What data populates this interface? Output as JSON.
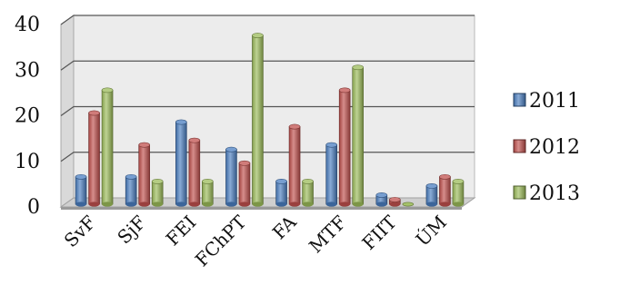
{
  "chart_data": {
    "type": "bar",
    "title": "",
    "xlabel": "",
    "ylabel": "",
    "categories": [
      "SvF",
      "SjF",
      "FEI",
      "FChPT",
      "FA",
      "MTF",
      "FIIT",
      "ÚM"
    ],
    "series": [
      {
        "name": "2011",
        "color": "#4a7ec0",
        "values": [
          6,
          6,
          18,
          12,
          5,
          13,
          2,
          4
        ]
      },
      {
        "name": "2012",
        "color": "#c0504d",
        "values": [
          20,
          13,
          14,
          9,
          17,
          25,
          1,
          6
        ]
      },
      {
        "name": "2013",
        "color": "#9bbb59",
        "values": [
          25,
          5,
          5,
          37,
          5,
          30,
          0,
          5
        ]
      }
    ],
    "ylim": [
      0,
      40
    ],
    "yticks": [
      0,
      10,
      20,
      30,
      40
    ],
    "grid": true,
    "legend_position": "right",
    "style": "3d-cylinder-bars"
  }
}
